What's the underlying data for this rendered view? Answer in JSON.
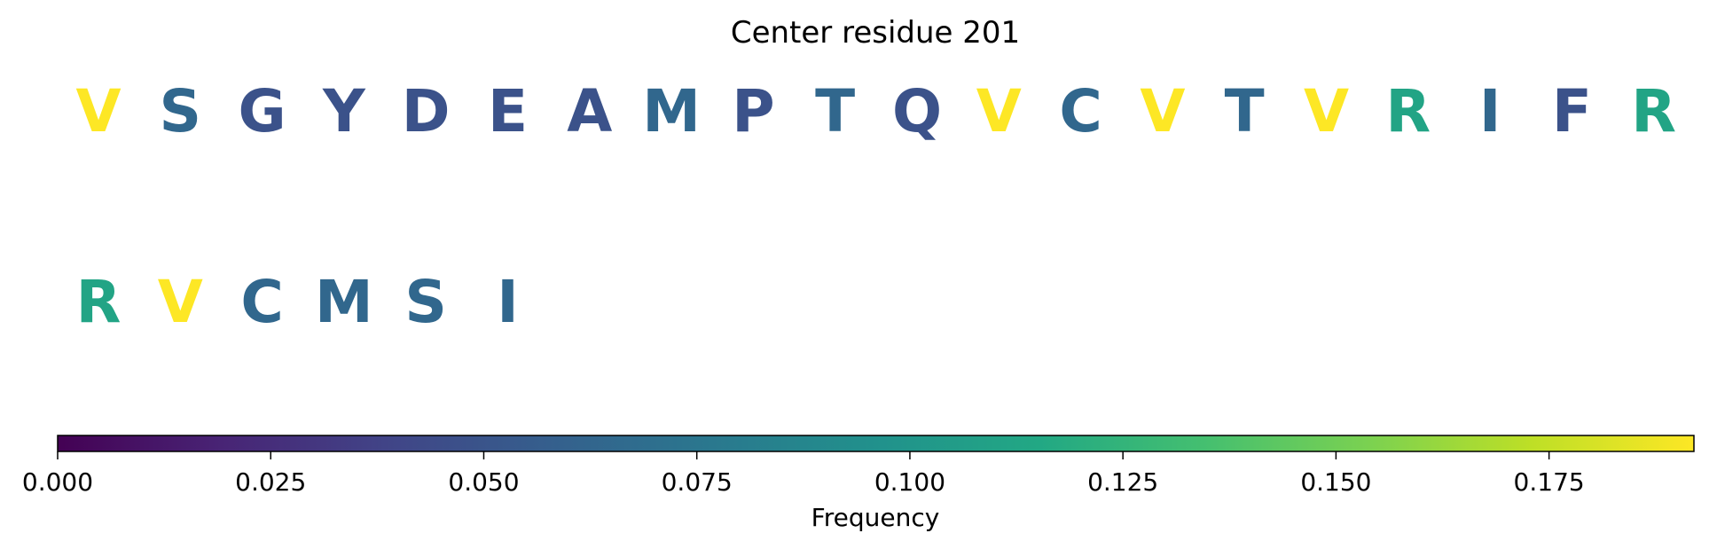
{
  "chart_data": {
    "type": "table",
    "title": "Center residue 201",
    "rows": [
      {
        "residues": [
          {
            "letter": "V",
            "frequency": 0.192
          },
          {
            "letter": "S",
            "frequency": 0.064
          },
          {
            "letter": "G",
            "frequency": 0.048
          },
          {
            "letter": "Y",
            "frequency": 0.048
          },
          {
            "letter": "D",
            "frequency": 0.048
          },
          {
            "letter": "E",
            "frequency": 0.048
          },
          {
            "letter": "A",
            "frequency": 0.048
          },
          {
            "letter": "M",
            "frequency": 0.064
          },
          {
            "letter": "P",
            "frequency": 0.048
          },
          {
            "letter": "T",
            "frequency": 0.064
          },
          {
            "letter": "Q",
            "frequency": 0.048
          },
          {
            "letter": "V",
            "frequency": 0.192
          },
          {
            "letter": "C",
            "frequency": 0.064
          },
          {
            "letter": "V",
            "frequency": 0.192
          },
          {
            "letter": "T",
            "frequency": 0.064
          },
          {
            "letter": "V",
            "frequency": 0.192
          },
          {
            "letter": "R",
            "frequency": 0.112
          },
          {
            "letter": "I",
            "frequency": 0.064
          },
          {
            "letter": "F",
            "frequency": 0.048
          },
          {
            "letter": "R",
            "frequency": 0.112
          }
        ]
      },
      {
        "residues": [
          {
            "letter": "R",
            "frequency": 0.112
          },
          {
            "letter": "V",
            "frequency": 0.192
          },
          {
            "letter": "C",
            "frequency": 0.064
          },
          {
            "letter": "M",
            "frequency": 0.064
          },
          {
            "letter": "S",
            "frequency": 0.064
          },
          {
            "letter": "I",
            "frequency": 0.064
          }
        ]
      }
    ],
    "colorbar": {
      "colormap": "viridis",
      "label": "Frequency",
      "vmin": 0.0,
      "vmax": 0.192,
      "ticks": [
        0.0,
        0.025,
        0.05,
        0.075,
        0.1,
        0.125,
        0.15,
        0.175
      ],
      "tick_labels": [
        "0.000",
        "0.025",
        "0.050",
        "0.075",
        "0.100",
        "0.125",
        "0.150",
        "0.175"
      ],
      "orientation": "horizontal",
      "placement": "bottom"
    }
  }
}
